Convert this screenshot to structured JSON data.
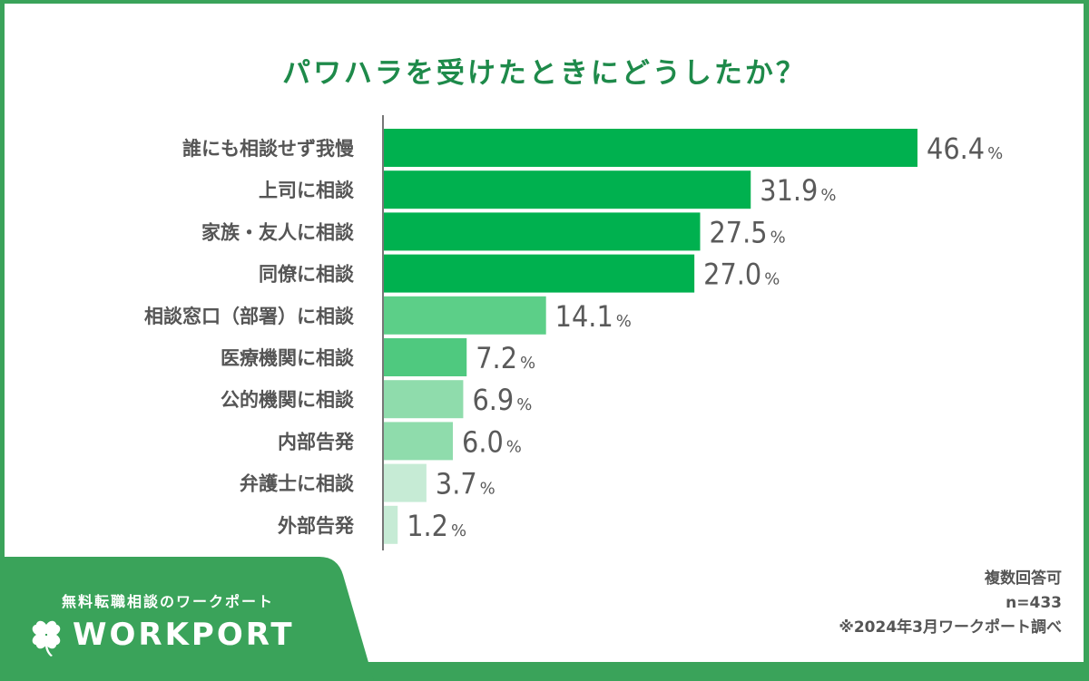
{
  "chart_data": {
    "type": "bar",
    "orientation": "horizontal",
    "title": "パワハラを受けたときにどうしたか？",
    "categories": [
      "誰にも相談せず我慢",
      "上司に相談",
      "家族・友人に相談",
      "同僚に相談",
      "相談窓口（部署）に相談",
      "医療機関に相談",
      "公的機関に相談",
      "内部告発",
      "弁護士に相談",
      "外部告発"
    ],
    "values": [
      46.4,
      31.9,
      27.5,
      27.0,
      14.1,
      7.2,
      6.9,
      6.0,
      3.7,
      1.2
    ],
    "value_labels": [
      "46.4",
      "31.9",
      "27.5",
      "27.0",
      "14.1",
      "7.2",
      "6.9",
      "6.0",
      "3.7",
      "1.2"
    ],
    "unit": "%",
    "bar_colors": [
      "#00b14f",
      "#00b14f",
      "#00b14f",
      "#00b14f",
      "#5ccf88",
      "#4fc97f",
      "#8fdcac",
      "#8fdcac",
      "#c6ebd5",
      "#c6ebd5"
    ],
    "xlabel": "",
    "ylabel": "",
    "xlim": [
      0,
      50
    ],
    "grid": false,
    "legend": "none"
  },
  "colors": {
    "frame": "#3aa35a",
    "title": "#1e8a4a",
    "text": "#555555",
    "axis": "#777777"
  },
  "branding": {
    "tagline": "無料転職相談のワークポート",
    "logo_text": "WORKPORT",
    "icon": "clover-icon"
  },
  "notes": {
    "multiple_answers": "複数回答可",
    "sample_size": "n=433",
    "source": "※2024年3月ワークポート調べ"
  }
}
